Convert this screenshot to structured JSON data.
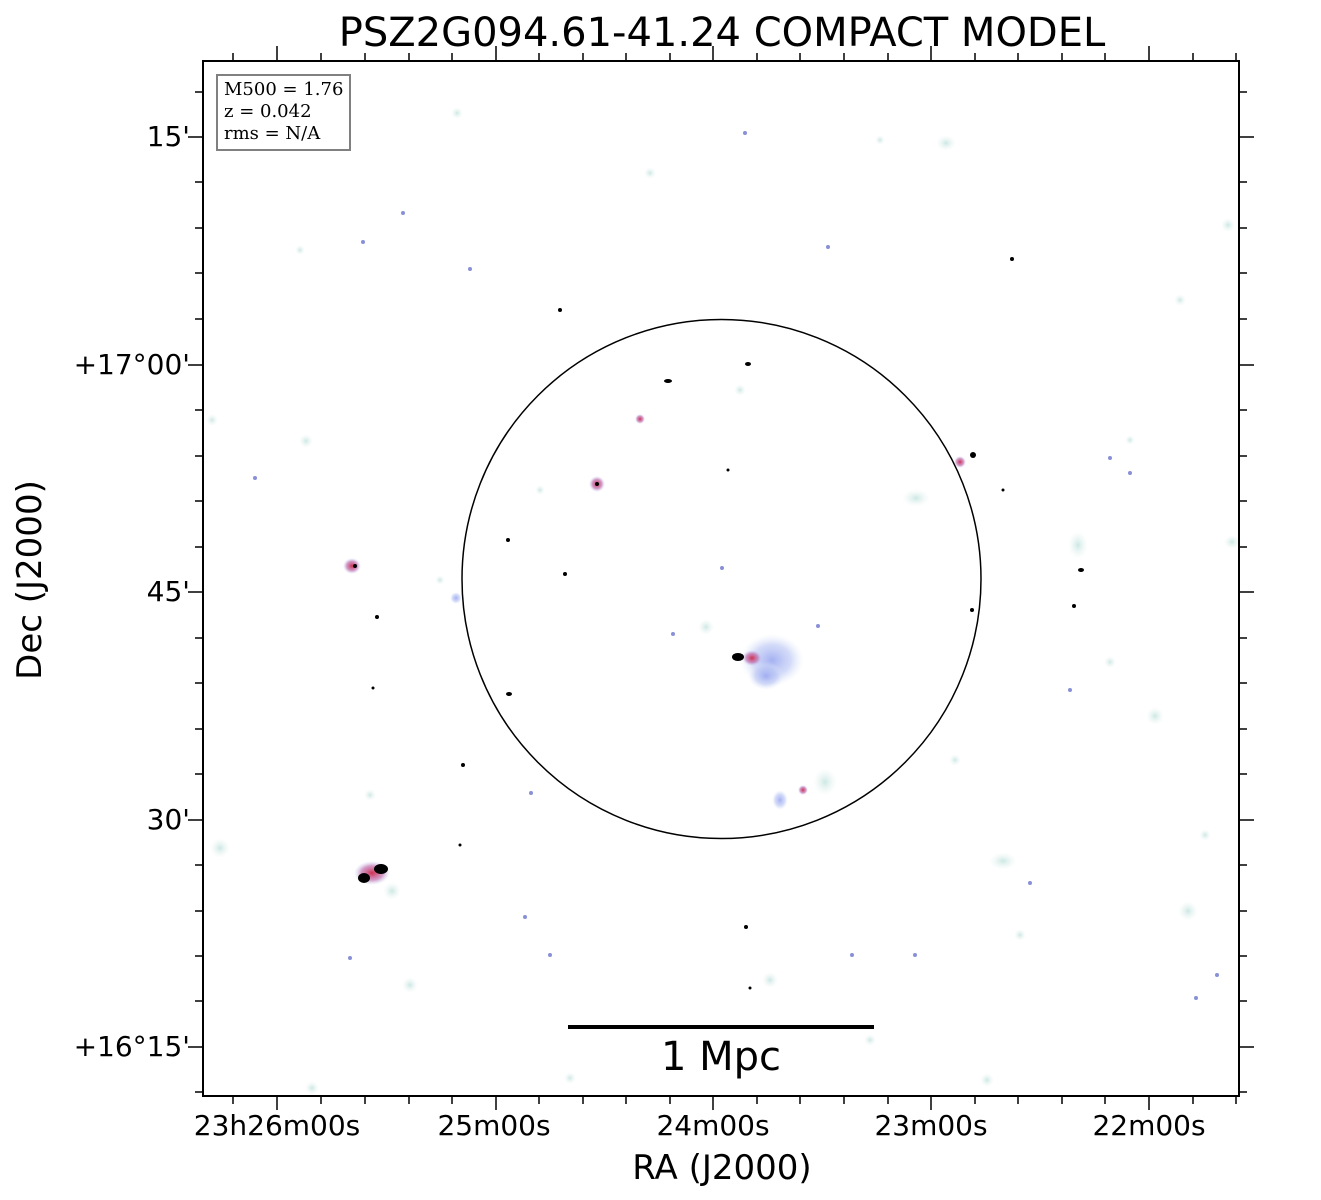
{
  "title": "PSZ2G094.61-41.24 COMPACT MODEL",
  "infobox": {
    "mass": "M500 = 1.76",
    "redshift": "z = 0.042",
    "rms": "rms = N/A"
  },
  "scalebar": {
    "label": "1 Mpc"
  },
  "axes": {
    "xlabel": "RA (J2000)",
    "ylabel": "Dec (J2000)",
    "xticks": [
      "23h26m00s",
      "25m00s",
      "24m00s",
      "23m00s",
      "22m00s"
    ],
    "yticks": [
      "15'",
      "+17°00'",
      "45'",
      "30'",
      "+16°15'"
    ]
  },
  "colors": {
    "background": "#ffffff",
    "diffuse_emission": "#a8b8f0",
    "compact_core": "#d04060",
    "point_sources": "#000000",
    "noise_speckle": "#cfe8e4",
    "frame": "#000000",
    "infobox_border": "#808080"
  }
}
